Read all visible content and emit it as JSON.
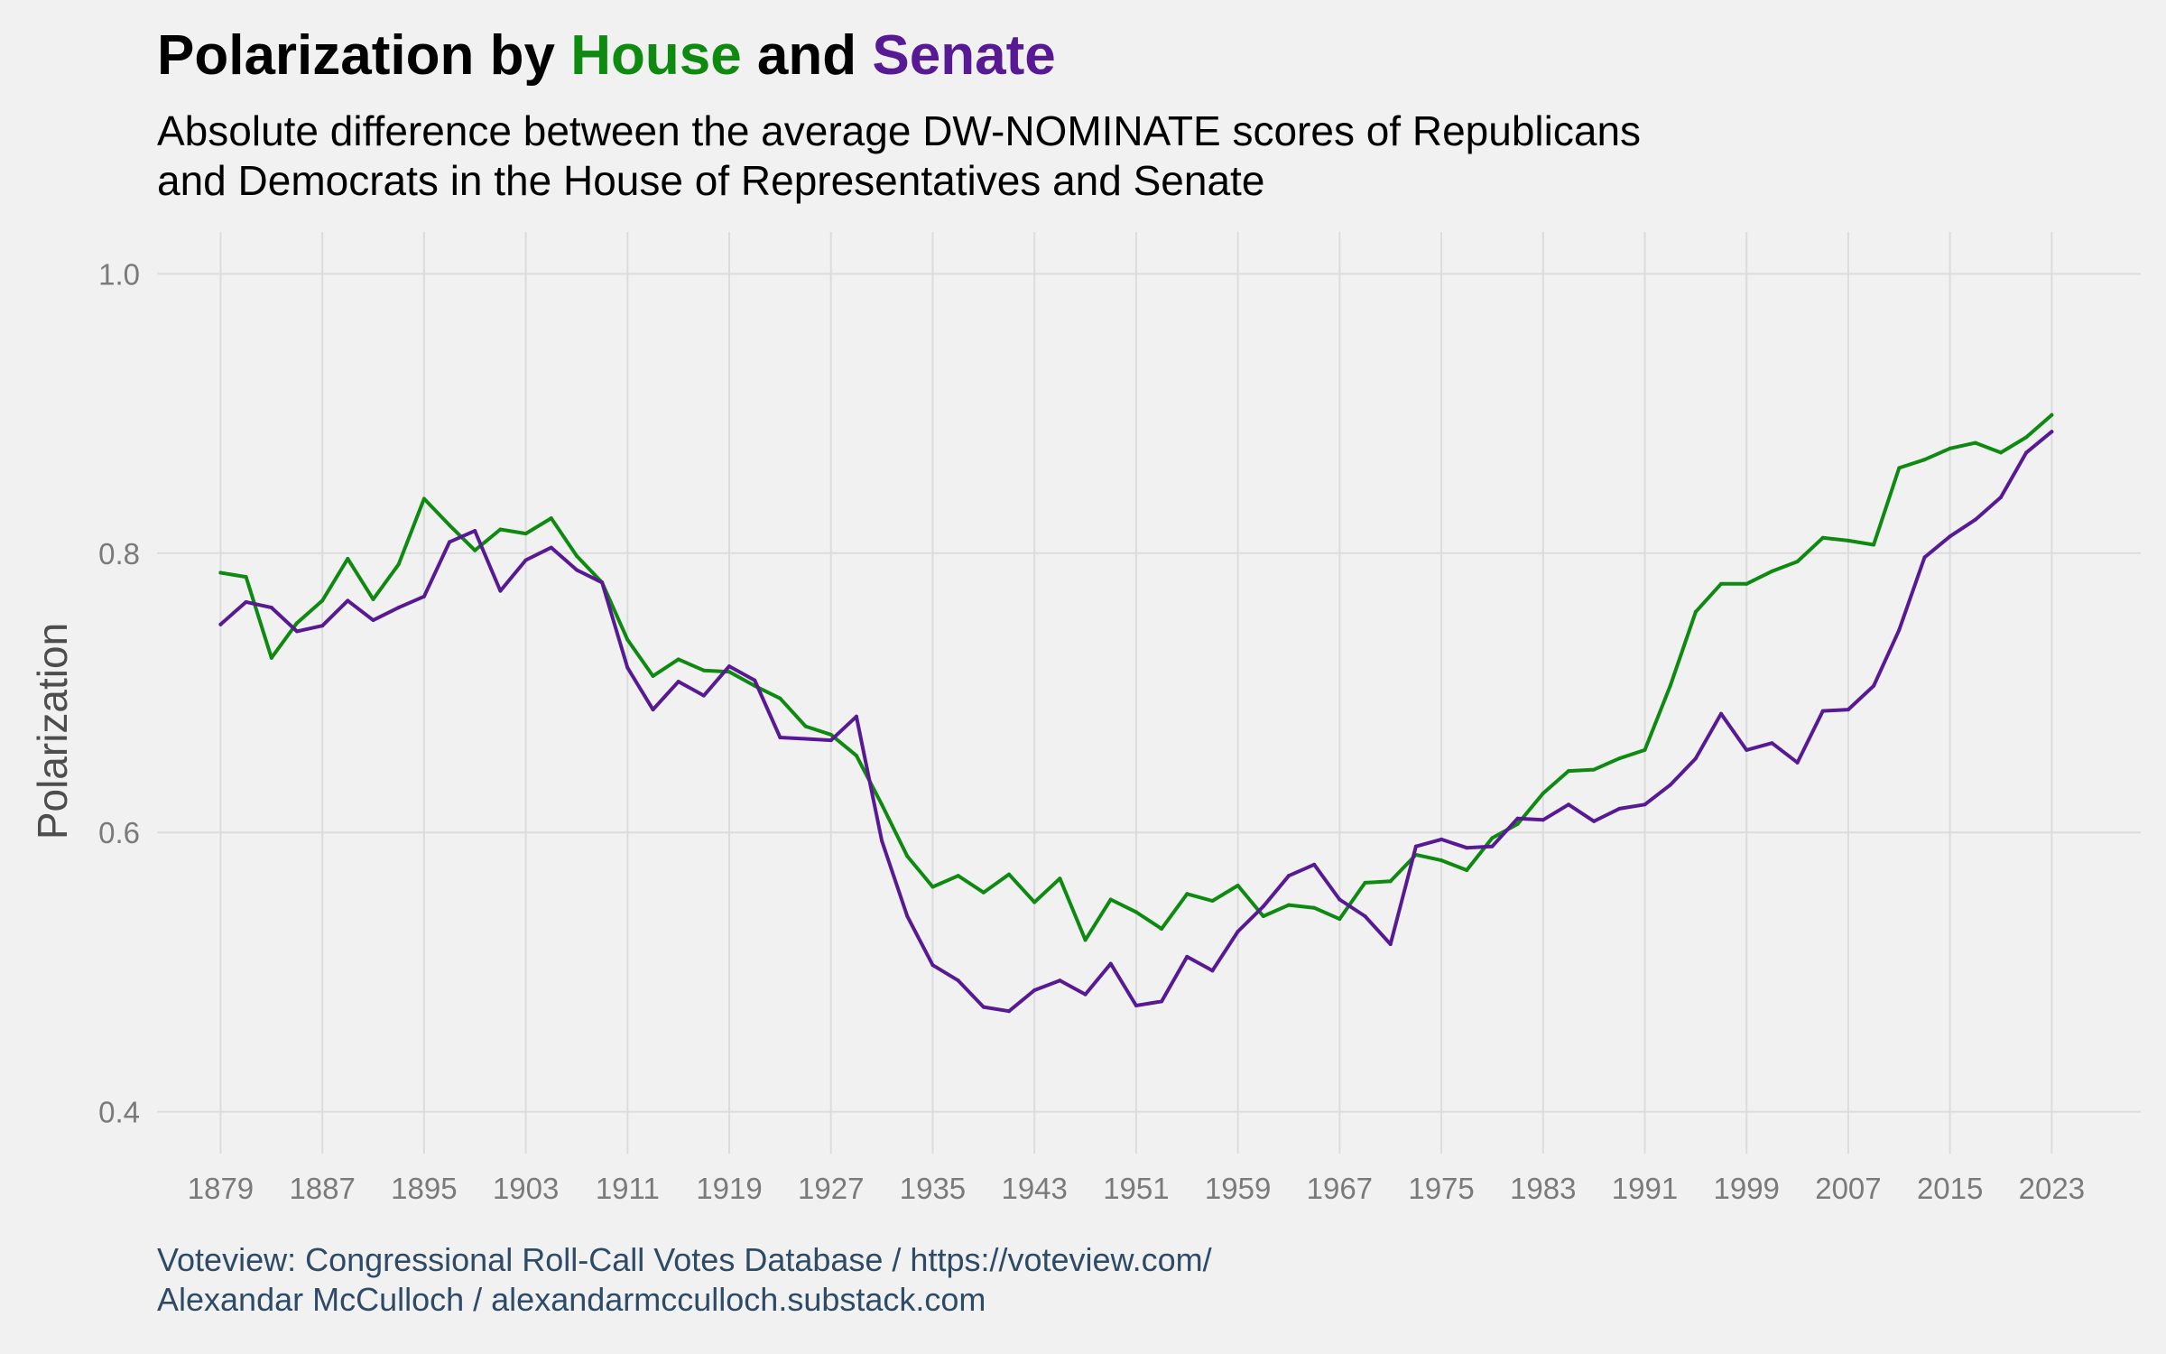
{
  "title": {
    "prefix": "Polarization by ",
    "house": "House",
    "middle": " and ",
    "senate": "Senate"
  },
  "subtitle": {
    "line1": "Absolute difference between the average DW-NOMINATE scores of Republicans",
    "line2": "and Democrats in the House of Representatives and Senate"
  },
  "caption": {
    "line1": "Voteview: Congressional Roll-Call Votes Database / https://voteview.com/",
    "line2": "Alexandar McCulloch / alexandarmcculloch.substack.com"
  },
  "colors": {
    "house": "#0e8a11",
    "senate": "#571a94",
    "background": "#f1f1f1",
    "grid": "#dcdcdc",
    "tick_text": "#7a7a7a"
  },
  "chart_data": {
    "type": "line",
    "title": "Polarization by House and Senate",
    "xlabel": "",
    "ylabel": "Polarization",
    "xlim": [
      1874,
      2030
    ],
    "ylim": [
      0.37,
      1.03
    ],
    "x_ticks": [
      1879,
      1887,
      1895,
      1903,
      1911,
      1919,
      1927,
      1935,
      1943,
      1951,
      1959,
      1967,
      1975,
      1983,
      1991,
      1999,
      2007,
      2015,
      2023
    ],
    "y_ticks": [
      0.4,
      0.6,
      0.8,
      1.0
    ],
    "y_tick_labels": [
      "0.4",
      "0.6",
      "0.8",
      "1.0"
    ],
    "grid": true,
    "legend": "none (series named in title colors)",
    "x": [
      1879,
      1881,
      1883,
      1885,
      1887,
      1889,
      1891,
      1893,
      1895,
      1897,
      1899,
      1901,
      1903,
      1905,
      1907,
      1909,
      1911,
      1913,
      1915,
      1917,
      1919,
      1921,
      1923,
      1925,
      1927,
      1929,
      1931,
      1933,
      1935,
      1937,
      1939,
      1941,
      1943,
      1945,
      1947,
      1949,
      1951,
      1953,
      1955,
      1957,
      1959,
      1961,
      1963,
      1965,
      1967,
      1969,
      1971,
      1973,
      1975,
      1977,
      1979,
      1981,
      1983,
      1985,
      1987,
      1989,
      1991,
      1993,
      1995,
      1997,
      1999,
      2001,
      2003,
      2005,
      2007,
      2009,
      2011,
      2013,
      2015,
      2017,
      2019,
      2021,
      2023
    ],
    "series": [
      {
        "name": "House",
        "color": "#0e8a11",
        "values": [
          0.786,
          0.783,
          0.725,
          0.75,
          0.766,
          0.796,
          0.767,
          0.792,
          0.839,
          0.82,
          0.802,
          0.817,
          0.814,
          0.825,
          0.798,
          0.779,
          0.738,
          0.712,
          0.724,
          0.716,
          0.715,
          0.705,
          0.696,
          0.676,
          0.67,
          0.655,
          0.62,
          0.583,
          0.561,
          0.569,
          0.557,
          0.57,
          0.55,
          0.567,
          0.523,
          0.552,
          0.543,
          0.531,
          0.556,
          0.551,
          0.562,
          0.54,
          0.548,
          0.546,
          0.538,
          0.564,
          0.565,
          0.584,
          0.58,
          0.573,
          0.596,
          0.606,
          0.628,
          0.644,
          0.645,
          0.653,
          0.659,
          0.705,
          0.758,
          0.778,
          0.778,
          0.787,
          0.794,
          0.811,
          0.809,
          0.806,
          0.861,
          0.867,
          0.875,
          0.879,
          0.872,
          0.883,
          0.899
        ]
      },
      {
        "name": "Senate",
        "color": "#571a94",
        "values": [
          0.749,
          0.765,
          0.761,
          0.744,
          0.748,
          0.766,
          0.752,
          0.761,
          0.769,
          0.808,
          0.816,
          0.773,
          0.795,
          0.804,
          0.788,
          0.779,
          0.718,
          0.688,
          0.708,
          0.698,
          0.719,
          0.709,
          0.668,
          0.667,
          0.666,
          0.683,
          0.594,
          0.54,
          0.505,
          0.494,
          0.475,
          0.472,
          0.487,
          0.494,
          0.484,
          0.506,
          0.476,
          0.479,
          0.511,
          0.501,
          0.529,
          0.547,
          0.569,
          0.577,
          0.552,
          0.54,
          0.52,
          0.59,
          0.595,
          0.589,
          0.59,
          0.61,
          0.609,
          0.62,
          0.608,
          0.617,
          0.62,
          0.634,
          0.653,
          0.685,
          0.659,
          0.664,
          0.65,
          0.687,
          0.688,
          0.705,
          0.745,
          0.797,
          0.812,
          0.824,
          0.84,
          0.872,
          0.887
        ]
      }
    ]
  }
}
